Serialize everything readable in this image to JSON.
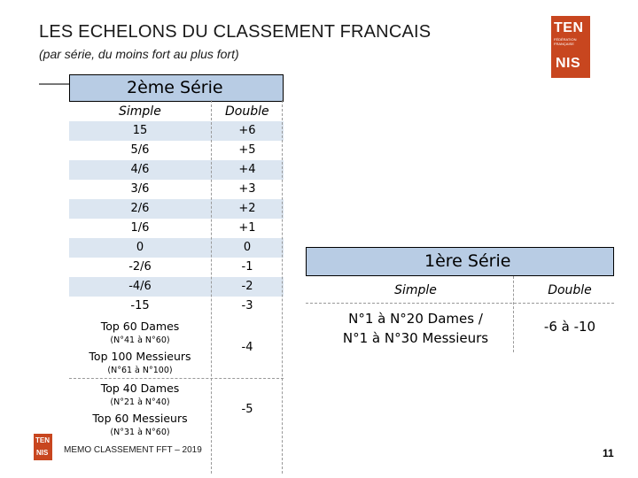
{
  "header": {
    "title": "LES ECHELONS DU CLASSEMENT FRANCAIS",
    "subtitle": "(par série, du moins fort au plus fort)"
  },
  "logo": {
    "line1": "TEN",
    "line2": "FÉDÉRATION FRANÇAISE",
    "line3": "NIS",
    "small_line1": "TEN",
    "small_line2": "NIS",
    "color": "#c8461f"
  },
  "serie2": {
    "title": "2ème Série",
    "col_simple": "Simple",
    "col_double": "Double",
    "rows": [
      {
        "simple": "15",
        "double": "+6"
      },
      {
        "simple": "5/6",
        "double": "+5"
      },
      {
        "simple": "4/6",
        "double": "+4"
      },
      {
        "simple": "3/6",
        "double": "+3"
      },
      {
        "simple": "2/6",
        "double": "+2"
      },
      {
        "simple": "1/6",
        "double": "+1"
      },
      {
        "simple": "0",
        "double": "0"
      },
      {
        "simple": "-2/6",
        "double": "-1"
      },
      {
        "simple": "-4/6",
        "double": "-2"
      },
      {
        "simple": "-15",
        "double": "-3"
      }
    ],
    "block1": {
      "dames": "Top 60 Dames",
      "dames_note": "(N°41 à N°60)",
      "messieurs": "Top 100 Messieurs",
      "messieurs_note": "(N°61 à N°100)",
      "double": "-4"
    },
    "block2": {
      "dames": "Top 40 Dames",
      "dames_note": "(N°21 à N°40)",
      "messieurs": "Top 60 Messieurs",
      "messieurs_note": "(N°31 à N°60)",
      "double": "-5"
    },
    "header_color": "#b8cce4",
    "stripe_color": "#dce6f1"
  },
  "serie1": {
    "title": "1ère Série",
    "col_simple": "Simple",
    "col_double": "Double",
    "simple_line1": "N°1 à N°20 Dames /",
    "simple_line2": "N°1 à N°30 Messieurs",
    "double": "-6 à -10"
  },
  "footer": {
    "memo": "MEMO CLASSEMENT FFT – 2019",
    "page": "11"
  }
}
